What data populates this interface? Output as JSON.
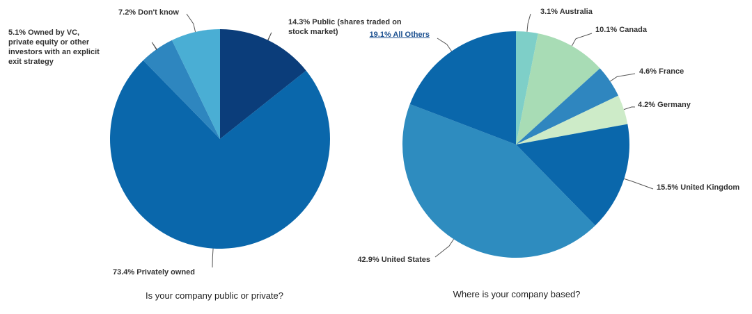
{
  "chart_data": [
    {
      "type": "pie",
      "title": "Is your company public or private?",
      "categories": [
        "Public (shares traded on stock market)",
        "Privately owned",
        "Owned by VC, private equity or other investors with an explicit exit strategy",
        "Don't know"
      ],
      "values": [
        14.3,
        73.4,
        5.1,
        7.2
      ],
      "value_labels": [
        "14.3%",
        "73.4%",
        "5.1%",
        "7.2%"
      ],
      "colors": [
        "#0b3d7a",
        "#0a67ab",
        "#2e86bf",
        "#4aaed4"
      ]
    },
    {
      "type": "pie",
      "title": "Where is your company based?",
      "categories": [
        "Australia",
        "Canada",
        "France",
        "Germany",
        "United Kingdom",
        "United States",
        "All Others"
      ],
      "values": [
        3.1,
        10.1,
        4.6,
        4.2,
        15.5,
        42.9,
        19.1
      ],
      "value_labels": [
        "3.1%",
        "10.1%",
        "4.6%",
        "4.2%",
        "15.5%",
        "42.9%",
        "19.1%"
      ],
      "colors": [
        "#7ecfc8",
        "#a8dcb5",
        "#2f86bf",
        "#cdebc8",
        "#0a67ab",
        "#2e8cbf",
        "#0a67ab"
      ]
    }
  ]
}
